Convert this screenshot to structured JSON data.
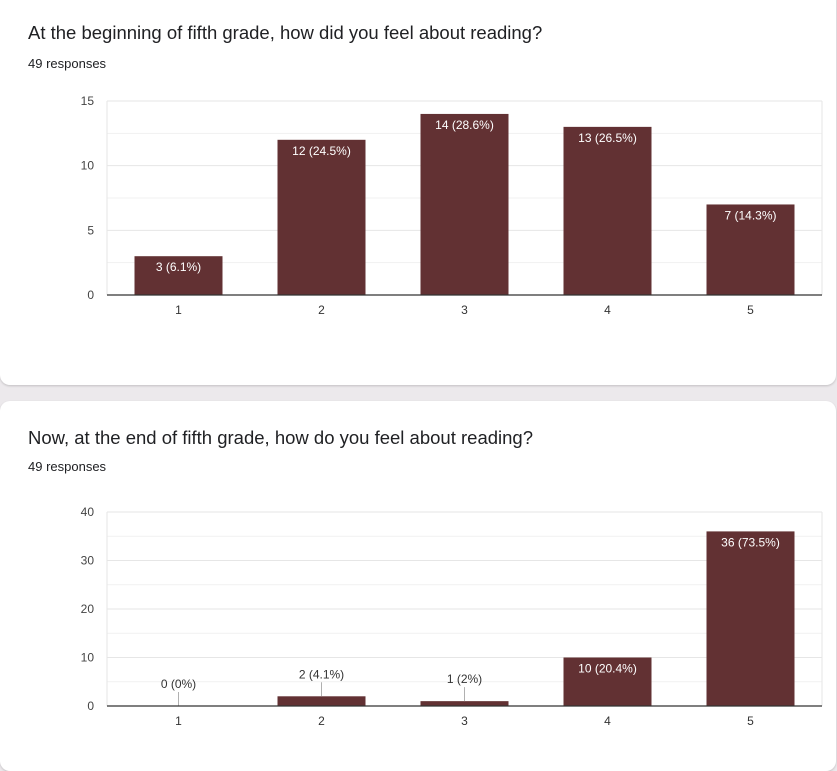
{
  "colors": {
    "bar": "#623133",
    "grid": "#e6e6e6",
    "axis": "#333333",
    "label": "#444444"
  },
  "questions": [
    {
      "title": "At the beginning of fifth grade, how did you feel about reading?",
      "responses": "49 responses"
    },
    {
      "title": "Now, at the end of fifth grade, how do you feel about reading?",
      "responses": "49 responses"
    }
  ],
  "chart_data": [
    {
      "type": "bar",
      "title": "At the beginning of fifth grade, how did you feel about reading?",
      "categories": [
        "1",
        "2",
        "3",
        "4",
        "5"
      ],
      "values": [
        3,
        12,
        14,
        13,
        7
      ],
      "data_labels": [
        "3 (6.1%)",
        "12 (24.5%)",
        "14 (28.6%)",
        "13 (26.5%)",
        "7 (14.3%)"
      ],
      "ylim": [
        0,
        15
      ],
      "yticks": [
        0,
        5,
        10,
        15
      ],
      "grid": true
    },
    {
      "type": "bar",
      "title": "Now, at the end of fifth grade, how do you feel about reading?",
      "categories": [
        "1",
        "2",
        "3",
        "4",
        "5"
      ],
      "values": [
        0,
        2,
        1,
        10,
        36
      ],
      "data_labels": [
        "0 (0%)",
        "2 (4.1%)",
        "1 (2%)",
        "10 (20.4%)",
        "36 (73.5%)"
      ],
      "ylim": [
        0,
        40
      ],
      "yticks": [
        0,
        10,
        20,
        30,
        40
      ],
      "grid": true
    }
  ]
}
